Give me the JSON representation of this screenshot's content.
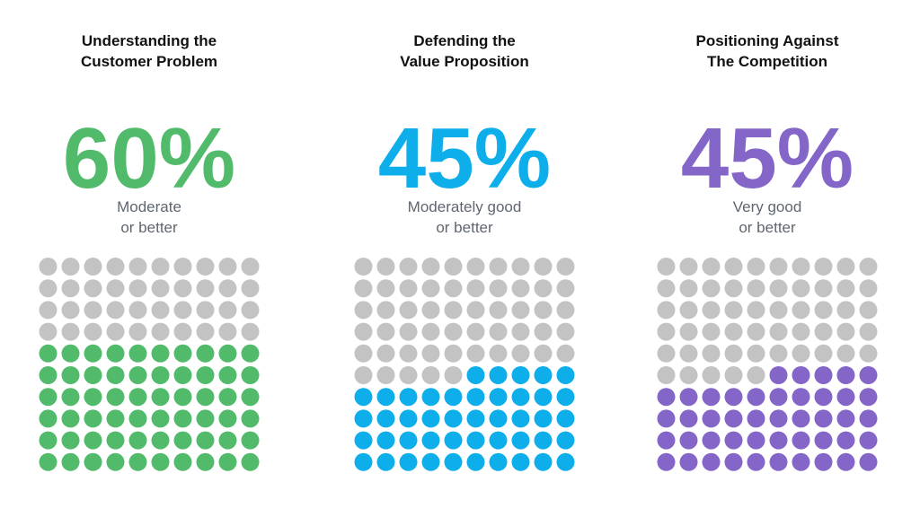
{
  "chart_data": [
    {
      "type": "waffle",
      "title": "Understanding the\nCustomer Problem",
      "value": 60,
      "value_label": "60%",
      "subtitle": "Moderate\nor better",
      "color": "#52bb6b"
    },
    {
      "type": "waffle",
      "title": "Defending the\nValue Proposition",
      "value": 45,
      "value_label": "45%",
      "subtitle": "Moderately good\nor better",
      "color": "#0daeea"
    },
    {
      "type": "waffle",
      "title": "Positioning Against\nThe Competition",
      "value": 45,
      "value_label": "45%",
      "subtitle": "Very good\nor better",
      "color": "#8465c8"
    }
  ]
}
